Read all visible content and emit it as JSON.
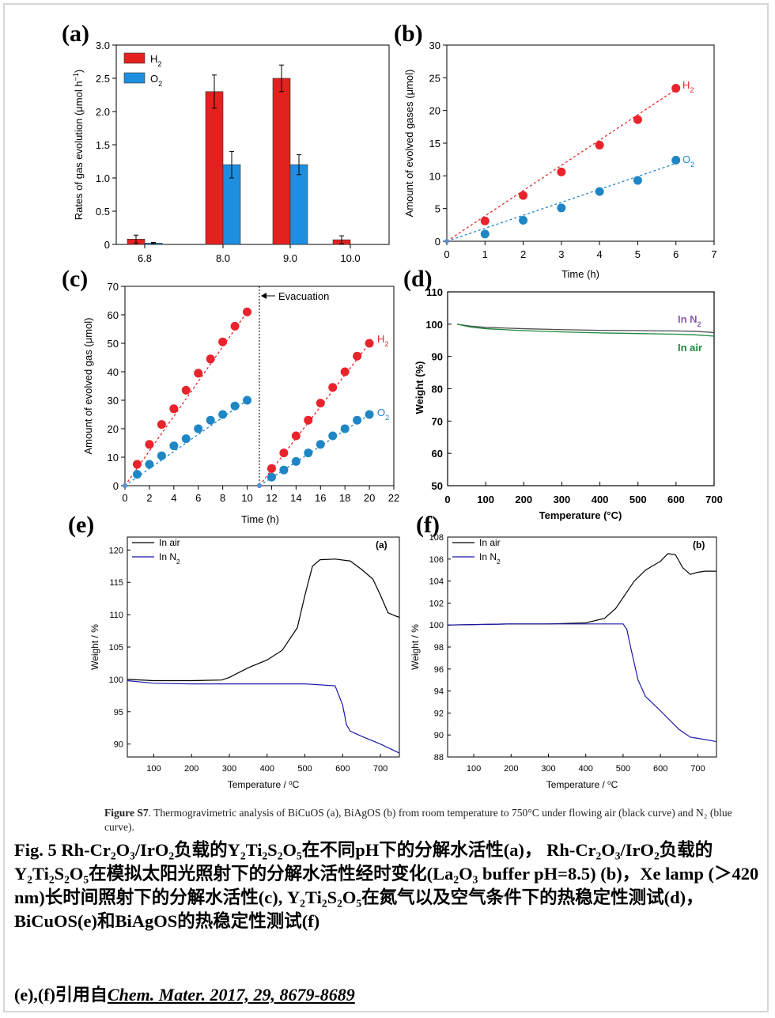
{
  "colors": {
    "h2_bar": "#e3211e",
    "o2_bar": "#1e8fe0",
    "h2_point": "#e8232b",
    "o2_point": "#1f86c6",
    "n2_line": "#8a5bb5",
    "air_line": "#1f8a3b",
    "tga_air": "#000000",
    "tga_n2": "#1a1aa8"
  },
  "panel_labels": {
    "a": "(a)",
    "b": "(b)",
    "c": "(c)",
    "d": "(d)",
    "e": "(e)",
    "f": "(f)"
  },
  "chart_data": [
    {
      "id": "a",
      "type": "bar",
      "categories": [
        "6.8",
        "8.0",
        "9.0",
        "10.0"
      ],
      "series": [
        {
          "name": "H2",
          "values": [
            0.08,
            2.3,
            2.5,
            0.07
          ],
          "errors": [
            0.06,
            0.25,
            0.2,
            0.06
          ]
        },
        {
          "name": "O2",
          "values": [
            0.02,
            1.2,
            1.2,
            0
          ],
          "errors": [
            0.01,
            0.2,
            0.15,
            0
          ]
        }
      ],
      "legend": [
        "H",
        "O"
      ],
      "legend_sub": "2",
      "ylabel": "Rates of gas evolution (μmol h",
      "ylabel_sup": "−1",
      "ylabel_end": ")",
      "ylim": [
        0,
        3.0
      ],
      "yticks": [
        "0",
        "0.5",
        "1.0",
        "1.5",
        "2.0",
        "2.5",
        "3.0"
      ]
    },
    {
      "id": "b",
      "type": "scatter",
      "xlabel": "Time (h)",
      "ylabel": "Amount of evolved gases (μmol)",
      "xlim": [
        0,
        7
      ],
      "ylim": [
        0,
        30
      ],
      "xticks": [
        "0",
        "1",
        "2",
        "3",
        "4",
        "5",
        "6",
        "7"
      ],
      "yticks": [
        "0",
        "5",
        "10",
        "15",
        "20",
        "25",
        "30"
      ],
      "series": [
        {
          "name": "H",
          "x": [
            0,
            1,
            2,
            3,
            4,
            5,
            6
          ],
          "y": [
            0,
            3.1,
            7.0,
            10.6,
            14.7,
            18.6,
            23.4
          ]
        },
        {
          "name": "O",
          "x": [
            0,
            1,
            2,
            3,
            4,
            5,
            6
          ],
          "y": [
            0,
            1.1,
            3.2,
            5.1,
            7.6,
            9.3,
            12.4
          ]
        }
      ],
      "fit_end": {
        "H": 23.2,
        "O": 11.9
      }
    },
    {
      "id": "c",
      "type": "scatter",
      "xlabel": "Time (h)",
      "ylabel": "Amount of evolved gas (μmol)",
      "xlim": [
        0,
        22
      ],
      "ylim": [
        0,
        70
      ],
      "xticks": [
        "0",
        "2",
        "4",
        "6",
        "8",
        "10",
        "12",
        "14",
        "16",
        "18",
        "20",
        "22"
      ],
      "yticks": [
        "0",
        "10",
        "20",
        "30",
        "40",
        "50",
        "60",
        "70"
      ],
      "annotation": "Evacuation",
      "evacuation_x": 11,
      "series": [
        {
          "name": "H",
          "x": [
            0,
            1,
            2,
            3,
            4,
            5,
            6,
            7,
            8,
            9,
            10,
            11,
            12,
            13,
            14,
            15,
            16,
            17,
            18,
            19,
            20
          ],
          "y": [
            0,
            7.5,
            14.5,
            21.5,
            27,
            33.5,
            39.5,
            44.5,
            50.5,
            56,
            61,
            0,
            6,
            11.5,
            17.5,
            23,
            29,
            34.5,
            40,
            45.5,
            50
          ]
        },
        {
          "name": "O",
          "x": [
            0,
            1,
            2,
            3,
            4,
            5,
            6,
            7,
            8,
            9,
            10,
            11,
            12,
            13,
            14,
            15,
            16,
            17,
            18,
            19,
            20
          ],
          "y": [
            0,
            4,
            7.5,
            10.5,
            14,
            16.5,
            20,
            23,
            25,
            28,
            30,
            0,
            3,
            5.5,
            8.5,
            11.5,
            14.5,
            17.5,
            20,
            23,
            25
          ]
        }
      ]
    },
    {
      "id": "d",
      "type": "line",
      "xlabel": "Temperature (°C)",
      "ylabel": "Weight (%)",
      "xlim": [
        0,
        700
      ],
      "ylim": [
        50,
        110
      ],
      "xticks": [
        "0",
        "100",
        "200",
        "300",
        "400",
        "500",
        "600",
        "700"
      ],
      "yticks": [
        "50",
        "60",
        "70",
        "80",
        "90",
        "100",
        "110"
      ],
      "series": [
        {
          "name": "In N",
          "x": [
            25,
            60,
            100,
            200,
            300,
            400,
            500,
            600,
            650,
            700
          ],
          "y": [
            100,
            99.4,
            99,
            98.6,
            98.3,
            98.1,
            98,
            97.9,
            97.8,
            97.4
          ]
        },
        {
          "name": "In air",
          "x": [
            25,
            60,
            100,
            200,
            300,
            400,
            500,
            600,
            650,
            700
          ],
          "y": [
            100,
            99.1,
            98.6,
            98,
            97.6,
            97.3,
            97.1,
            96.9,
            96.7,
            96.3
          ]
        }
      ]
    },
    {
      "id": "e",
      "type": "line",
      "xlabel": "Temperature / ",
      "xlabel_unit": "C",
      "ylabel": "Weight / %",
      "inset": "(a)",
      "xlim": [
        30,
        750
      ],
      "ylim": [
        88,
        122
      ],
      "xticks": [
        "100",
        "200",
        "300",
        "400",
        "500",
        "600",
        "700"
      ],
      "yticks": [
        "90",
        "95",
        "100",
        "105",
        "110",
        "115",
        "120"
      ],
      "series": [
        {
          "name": "In air",
          "x": [
            30,
            100,
            200,
            280,
            300,
            350,
            400,
            440,
            480,
            500,
            520,
            540,
            580,
            620,
            650,
            680,
            700,
            720,
            740,
            750
          ],
          "y": [
            100,
            99.8,
            99.8,
            99.9,
            100.3,
            101.8,
            103,
            104.5,
            108,
            113,
            117.5,
            118.5,
            118.6,
            118.3,
            117,
            115.5,
            113,
            110.3,
            109.8,
            109.6
          ]
        },
        {
          "name": "In N",
          "x": [
            30,
            100,
            200,
            300,
            400,
            500,
            580,
            600,
            610,
            620,
            650,
            700,
            750
          ],
          "y": [
            99.8,
            99.4,
            99.3,
            99.3,
            99.3,
            99.3,
            99,
            96,
            93,
            92,
            91.2,
            90,
            88.6
          ]
        }
      ]
    },
    {
      "id": "f",
      "type": "line",
      "xlabel": "Temperature / ",
      "xlabel_unit": "C",
      "ylabel": "Weight / %",
      "inset": "(b)",
      "xlim": [
        30,
        750
      ],
      "ylim": [
        88,
        108
      ],
      "xticks": [
        "100",
        "200",
        "300",
        "400",
        "500",
        "600",
        "700"
      ],
      "yticks": [
        "88",
        "90",
        "92",
        "94",
        "96",
        "98",
        "100",
        "102",
        "104",
        "106",
        "108"
      ],
      "series": [
        {
          "name": "In air",
          "x": [
            30,
            200,
            300,
            400,
            450,
            480,
            500,
            530,
            560,
            600,
            620,
            640,
            660,
            680,
            700,
            720,
            750
          ],
          "y": [
            100,
            100.1,
            100.1,
            100.2,
            100.6,
            101.5,
            102.5,
            104,
            105,
            105.8,
            106.5,
            106.4,
            105.2,
            104.6,
            104.8,
            104.9,
            104.9
          ]
        },
        {
          "name": "In N",
          "x": [
            30,
            200,
            300,
            400,
            500,
            510,
            520,
            540,
            560,
            600,
            650,
            680,
            700,
            750
          ],
          "y": [
            100,
            100.1,
            100.1,
            100.1,
            100.1,
            99.6,
            98,
            95,
            93.5,
            92.2,
            90.5,
            89.8,
            89.7,
            89.4
          ]
        }
      ]
    }
  ],
  "figure_s7": {
    "label": "Figure S7",
    "text": ". Thermogravimetric analysis of BiCuOS (a), BiAgOS (b) from room temperature to 750°C under flowing air (black curve) and N₂ (blue curve)."
  },
  "caption": "Fig. 5  Rh-Cr₂O₃/IrO₂负载的Y₂Ti₂S₂O₅在不同pH下的分解水活性(a)， Rh-Cr₂O₃/IrO₂负载的Y₂Ti₂S₂O₅在模拟太阳光照射下的分解水活性经时变化(La₂O₃ buffer pH=8.5) (b)，Xe lamp (＞420 nm)长时间照射下的分解水活性(c), Y₂Ti₂S₂O₅在氮气以及空气条件下的热稳定性测试(d)， BiCuOS(e)和BiAgOS的热稳定性测试(f)",
  "citation_prefix": "(e),(f)引用自",
  "citation": "Chem. Mater. 2017, 29, 8679-8689"
}
